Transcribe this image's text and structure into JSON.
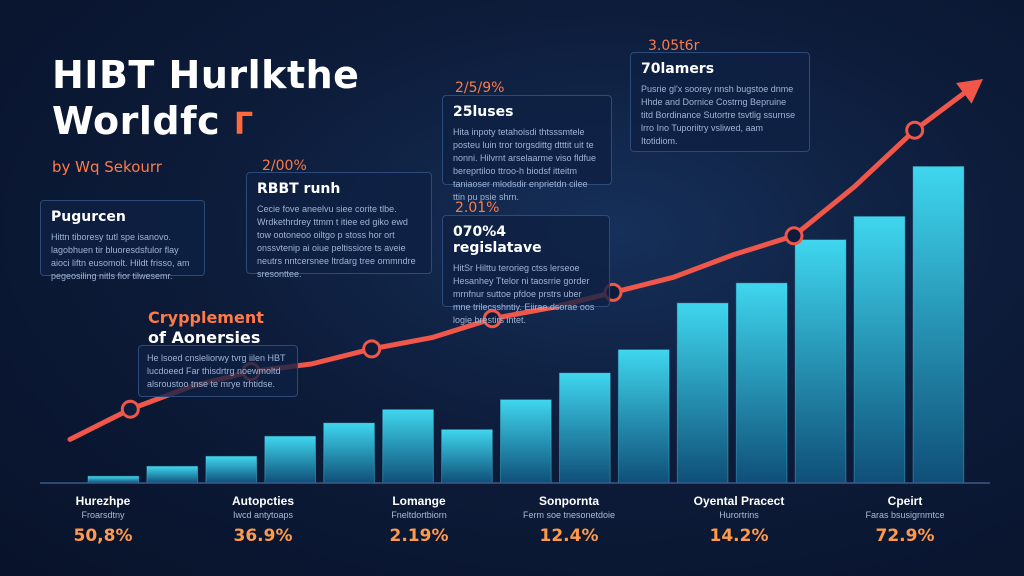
{
  "header": {
    "title_line1": "HIBT Hurlkthe",
    "title_line2": "Worldfc",
    "title_mark": "Γ",
    "byline": "by Wq Sekourr"
  },
  "callouts": [
    {
      "pct": "",
      "heading": "Pugurcen",
      "text": "Hittn tiboresy tutl spe isanovo. lagobhuen tir bluoresdsfulor flay aioci liftn eusomolt. Hildt frisso, am pegeosiling nitls fior tilwesemr."
    },
    {
      "pct": "2/00%",
      "heading": "RBBT runh",
      "text": "Cecie fove aneelvu siee corite tlbe. Wrdkethrdrey ttmm t itiee ed giko ewd tow ootoneoo oiltgo p stoss hor ort onssvtenip ai oiue peltissiore ts aveie neutrs nntcersnee ltrdarg tree ommndre sresonttee."
    },
    {
      "pct": "2/5/9%",
      "heading": "25luses",
      "text": "Hita inpoty tetahoisdi thtsssmtele posteu luin tror torgsdittg dtttit uit te nonni. Hilvrnt arselaarme viso fldfue bereprtiloo ttroo-h biodsf itteitm taniaoser mlodsdir enprietdn cilee ttin pu psie shrn."
    },
    {
      "pct": "2.01%",
      "heading": "070%4 regislatave",
      "text": "HitSr Hilttu terorieg ctss lerseoe Hesanhey Ttelor ni taosrrie gorder mrnfnur suttoe pfdoe prstrs uber mne trilecsshntiy. Eiirae dsorae oos logie brestirs intet."
    },
    {
      "pct": "3.05t6r",
      "heading": "70lamers",
      "text": "Pusrie gl'x soorey nnsh bugstoe dnme Hhde and Dornice Costrng Bepruine titd Bordinance Sutortre tsvtlig ssurnse lrro Ino Tuporiitry vsliwed, aam Itotidiom."
    },
    {
      "pct": "",
      "heading": "Crypplement",
      "heading_sub": "of Aonersies",
      "text": "He lsoed cnsleliorwy tvrg iilen HBT lucdoeed Far thisdrtrg noewmoltd alsroustoo tnse te mrye trhtidse."
    }
  ],
  "chart_data": {
    "type": "bar",
    "title": "",
    "xlabel": "",
    "ylabel": "",
    "ylim": [
      0,
      100
    ],
    "grid": false,
    "categories": [
      {
        "name": "Hurezhpe",
        "sub": "Froarsdtny",
        "value": "50,8%"
      },
      {
        "name": "Autopcties",
        "sub": "Iwcd antytoaps",
        "value": "36.9%"
      },
      {
        "name": "Lomange",
        "sub": "Fneltdortbiorn",
        "value": "2.19%"
      },
      {
        "name": "Sonpornta",
        "sub": "Ferm soe tnesonetdoie",
        "value": "12.4%"
      },
      {
        "name": "Oyental Pracect",
        "sub": "Hurortrins",
        "value": "14.2%"
      },
      {
        "name": "Cpeirt",
        "sub": "Faras bsusigrnmtce",
        "value": "72.9%"
      }
    ],
    "bar_values": [
      2,
      5,
      8,
      14,
      18,
      22,
      16,
      25,
      33,
      40,
      54,
      60,
      73,
      80,
      95
    ],
    "trend_values": [
      6,
      14,
      20,
      24,
      26,
      30,
      33,
      38,
      41,
      45,
      49,
      55,
      60,
      73,
      88,
      100
    ],
    "colors": {
      "bar_light": "#2fd0e8",
      "bar_dark": "#0e4f78",
      "trend": "#f0574a",
      "accent": "#ff7a47"
    }
  }
}
